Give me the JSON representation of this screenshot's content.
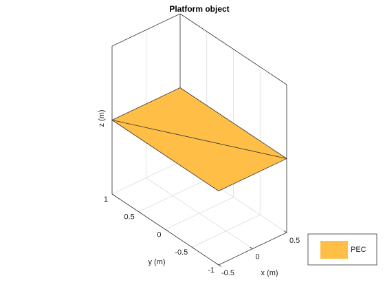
{
  "chart_data": {
    "type": "mesh3d",
    "title": "Platform object",
    "xlabel": "x (m)",
    "ylabel": "y (m)",
    "zlabel": "z (m)",
    "xlim": [
      -0.5,
      0.5
    ],
    "ylim": [
      -1,
      1
    ],
    "zlim": [
      -1,
      1
    ],
    "xticks": [
      -0.5,
      0,
      0.5
    ],
    "yticks": [
      -1,
      -0.5,
      0,
      0.5,
      1
    ],
    "grid": true,
    "series": [
      {
        "name": "PEC",
        "color": "#ffbf47",
        "x": [
          -0.5,
          0.5,
          0.5,
          -0.5
        ],
        "y": [
          1,
          1,
          -1,
          -1
        ],
        "z": [
          0,
          0,
          0,
          0
        ]
      }
    ],
    "legend": "lower-right"
  }
}
